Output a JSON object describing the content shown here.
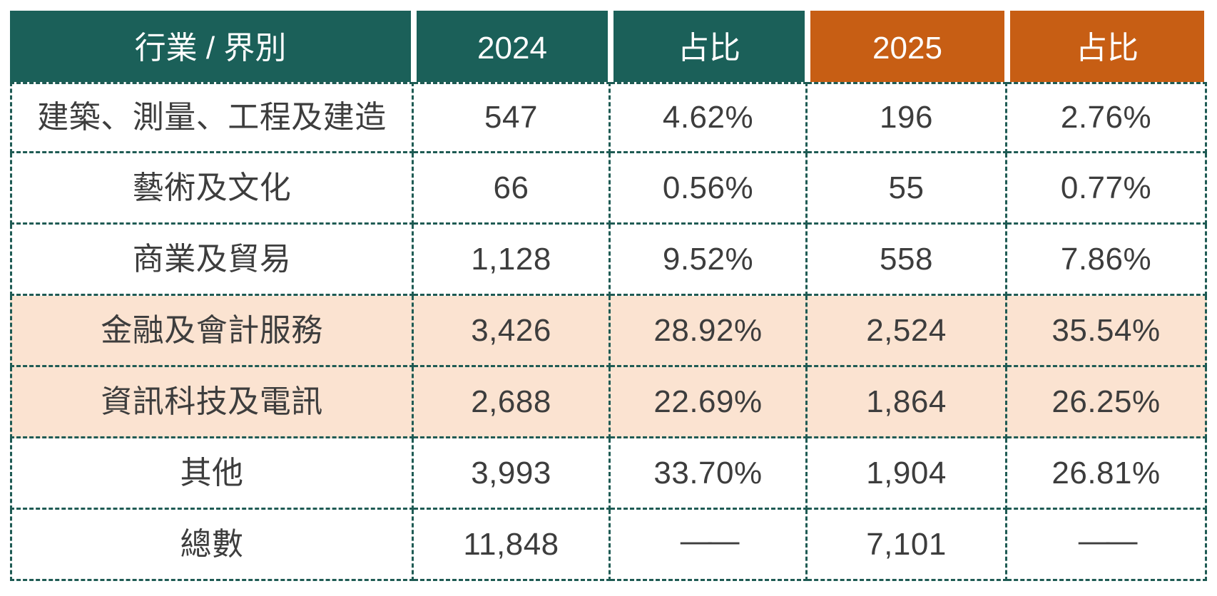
{
  "colors": {
    "teal": "#1B6059",
    "orange": "#C75E14",
    "border": "#1F5B54",
    "highlight": "#FBE3D1",
    "text": "#3D3D3D",
    "header_text": "#FFFFFF"
  },
  "header": {
    "cells": [
      {
        "label": "行業 / 界別",
        "theme": "teal"
      },
      {
        "label": "2024",
        "theme": "teal"
      },
      {
        "label": "占比",
        "theme": "teal"
      },
      {
        "label": "2025",
        "theme": "orange"
      },
      {
        "label": "占比",
        "theme": "orange"
      }
    ]
  },
  "chart_data": {
    "type": "table",
    "title": "",
    "columns": [
      "行業 / 界別",
      "2024",
      "占比",
      "2025",
      "占比"
    ],
    "rows": [
      {
        "industry": "建築、測量、工程及建造",
        "count_2024": "547",
        "share_2024": "4.62%",
        "count_2025": "196",
        "share_2025": "2.76%",
        "highlighted": false
      },
      {
        "industry": "藝術及文化",
        "count_2024": "66",
        "share_2024": "0.56%",
        "count_2025": "55",
        "share_2025": "0.77%",
        "highlighted": false
      },
      {
        "industry": "商業及貿易",
        "count_2024": "1,128",
        "share_2024": "9.52%",
        "count_2025": "558",
        "share_2025": "7.86%",
        "highlighted": false
      },
      {
        "industry": "金融及會計服務",
        "count_2024": "3,426",
        "share_2024": "28.92%",
        "count_2025": "2,524",
        "share_2025": "35.54%",
        "highlighted": true
      },
      {
        "industry": "資訊科技及電訊",
        "count_2024": "2,688",
        "share_2024": "22.69%",
        "count_2025": "1,864",
        "share_2025": "26.25%",
        "highlighted": true
      },
      {
        "industry": "其他",
        "count_2024": "3,993",
        "share_2024": "33.70%",
        "count_2025": "1,904",
        "share_2025": "26.81%",
        "highlighted": false
      },
      {
        "industry": "總數",
        "count_2024": "11,848",
        "share_2024": "——",
        "count_2025": "7,101",
        "share_2025": "——",
        "highlighted": false
      }
    ]
  }
}
